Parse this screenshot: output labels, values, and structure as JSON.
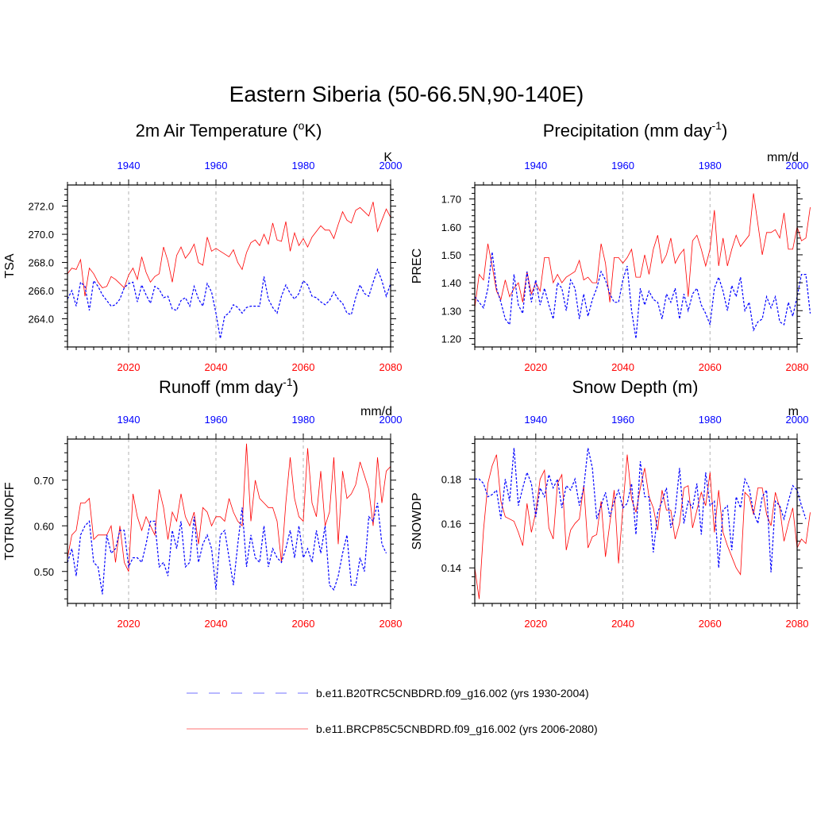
{
  "figure": {
    "title": "Eastern Siberia (50-66.5N,90-140E)"
  },
  "colors": {
    "future": "#ff0000",
    "historical": "#0000ff",
    "grid": "#b3b3b3",
    "axis": "#000000"
  },
  "legend": [
    {
      "name": "b.e11.B20TRC5CNBDRD.f09_g16.002 (yrs 1930-2004)",
      "color": "#0000ff",
      "style": "dashed"
    },
    {
      "name": "b.e11.BRCP85C5CNBDRD.f09_g16.002 (yrs 2006-2080)",
      "color": "#ff0000",
      "style": "solid"
    }
  ],
  "chart_data": [
    {
      "type": "line",
      "title": "2m Air Temperature (",
      "title_sup": "o",
      "title_after": "K)",
      "ylabel": "TSA",
      "units": "K",
      "xlim": [
        2006,
        2080
      ],
      "xticks": [
        2020,
        2040,
        2060,
        2080
      ],
      "xticklabels": [
        "2020",
        "2040",
        "2060",
        "2080"
      ],
      "top_xticks": [
        1940,
        1960,
        1980,
        2000
      ],
      "top_xticklabels": [
        "1940",
        "1960",
        "1980",
        "2000"
      ],
      "ylim": [
        262.0,
        273.5
      ],
      "yticks": [
        264,
        266,
        268,
        270,
        272
      ],
      "yticklabels": [
        "264.0",
        "266.0",
        "268.0",
        "270.0",
        "272.0"
      ],
      "series": [
        {
          "name": "b.e11.BRCP85C5CNBDRD.f09_g16.002",
          "color": "#ff0000",
          "style": "solid",
          "x_start": 2006,
          "values": [
            267.2,
            267.6,
            267.5,
            268.2,
            265.6,
            267.6,
            267.2,
            266.6,
            266.2,
            266.3,
            267.0,
            266.8,
            266.5,
            266.2,
            267.1,
            267.6,
            266.8,
            268.4,
            267.3,
            266.6,
            267.0,
            267.2,
            269.1,
            268.1,
            266.6,
            268.5,
            269.1,
            268.3,
            268.7,
            269.3,
            268.0,
            267.8,
            269.8,
            268.8,
            269.0,
            268.8,
            268.6,
            268.4,
            268.9,
            268.0,
            267.5,
            268.7,
            269.4,
            269.6,
            269.2,
            270.0,
            269.3,
            270.8,
            269.6,
            269.5,
            270.9,
            268.8,
            270.1,
            269.2,
            269.7,
            269.1,
            269.8,
            270.2,
            270.6,
            270.3,
            270.3,
            269.7,
            270.7,
            271.6,
            271.0,
            270.8,
            271.7,
            271.9,
            271.6,
            271.3,
            272.3,
            270.2,
            271.0,
            271.8,
            271.2
          ]
        },
        {
          "name": "b.e11.B20TRC5CNBDRD.f09_g16.002",
          "color": "#0000ff",
          "style": "dashed",
          "x_start": 2006,
          "values": [
            265.4,
            266.0,
            264.9,
            266.6,
            266.3,
            264.6,
            266.7,
            266.3,
            265.7,
            265.3,
            264.9,
            265.0,
            265.4,
            266.2,
            266.5,
            266.6,
            265.2,
            266.4,
            265.7,
            265.1,
            266.3,
            266.1,
            265.5,
            265.6,
            264.7,
            264.6,
            265.3,
            265.5,
            264.9,
            266.3,
            265.4,
            264.9,
            266.5,
            265.9,
            264.4,
            262.6,
            264.2,
            264.4,
            265.0,
            264.8,
            264.4,
            264.8,
            264.9,
            264.9,
            264.9,
            267.0,
            265.4,
            264.8,
            264.4,
            265.6,
            266.4,
            265.8,
            265.4,
            265.8,
            266.7,
            266.4,
            265.6,
            265.5,
            265.2,
            265.0,
            265.3,
            265.9,
            265.4,
            265.1,
            264.4,
            264.3,
            265.5,
            266.4,
            265.8,
            265.6,
            266.6,
            267.5,
            266.7,
            265.6,
            266.5
          ]
        }
      ]
    },
    {
      "type": "line",
      "title": "Precipitation (mm day",
      "title_sup": "-1",
      "title_after": ")",
      "ylabel": "PREC",
      "units": "mm/d",
      "xlim": [
        2006,
        2080
      ],
      "xticks": [
        2020,
        2040,
        2060,
        2080
      ],
      "xticklabels": [
        "2020",
        "2040",
        "2060",
        "2080"
      ],
      "top_xticks": [
        1940,
        1960,
        1980,
        2000
      ],
      "top_xticklabels": [
        "1940",
        "1960",
        "1980",
        "2000"
      ],
      "ylim": [
        1.17,
        1.75
      ],
      "yticks": [
        1.2,
        1.3,
        1.4,
        1.5,
        1.6,
        1.7
      ],
      "yticklabels": [
        "1.20",
        "1.30",
        "1.40",
        "1.50",
        "1.60",
        "1.70"
      ],
      "series": [
        {
          "name": "b.e11.BRCP85C5CNBDRD.f09_g16.002",
          "color": "#ff0000",
          "style": "solid",
          "x_start": 2006,
          "values": [
            1.31,
            1.43,
            1.41,
            1.54,
            1.46,
            1.37,
            1.34,
            1.41,
            1.35,
            1.38,
            1.4,
            1.33,
            1.44,
            1.36,
            1.4,
            1.37,
            1.49,
            1.49,
            1.4,
            1.43,
            1.4,
            1.42,
            1.43,
            1.44,
            1.48,
            1.41,
            1.42,
            1.4,
            1.4,
            1.54,
            1.47,
            1.33,
            1.49,
            1.49,
            1.47,
            1.49,
            1.52,
            1.42,
            1.42,
            1.5,
            1.43,
            1.52,
            1.57,
            1.47,
            1.5,
            1.56,
            1.47,
            1.5,
            1.52,
            1.35,
            1.55,
            1.57,
            1.52,
            1.46,
            1.52,
            1.66,
            1.46,
            1.56,
            1.46,
            1.52,
            1.57,
            1.53,
            1.55,
            1.57,
            1.72,
            1.61,
            1.5,
            1.58,
            1.58,
            1.59,
            1.56,
            1.65,
            1.52,
            1.52,
            1.6,
            1.55,
            1.56,
            1.67
          ]
        },
        {
          "name": "b.e11.B20TRC5CNBDRD.f09_g16.002",
          "color": "#0000ff",
          "style": "dashed",
          "x_start": 2006,
          "values": [
            1.35,
            1.33,
            1.31,
            1.38,
            1.51,
            1.38,
            1.33,
            1.27,
            1.25,
            1.43,
            1.32,
            1.29,
            1.44,
            1.33,
            1.41,
            1.32,
            1.38,
            1.32,
            1.27,
            1.4,
            1.38,
            1.3,
            1.41,
            1.38,
            1.27,
            1.36,
            1.28,
            1.34,
            1.38,
            1.44,
            1.41,
            1.36,
            1.33,
            1.33,
            1.41,
            1.46,
            1.3,
            1.2,
            1.38,
            1.32,
            1.37,
            1.34,
            1.33,
            1.27,
            1.36,
            1.33,
            1.38,
            1.27,
            1.36,
            1.3,
            1.36,
            1.38,
            1.32,
            1.29,
            1.25,
            1.38,
            1.42,
            1.37,
            1.3,
            1.39,
            1.35,
            1.42,
            1.3,
            1.33,
            1.23,
            1.26,
            1.27,
            1.35,
            1.31,
            1.35,
            1.26,
            1.25,
            1.33,
            1.28,
            1.35,
            1.43,
            1.43,
            1.29
          ]
        }
      ]
    },
    {
      "type": "line",
      "title": "Runoff (mm day",
      "title_sup": "-1",
      "title_after": ")",
      "ylabel": "TOTRUNOFF",
      "units": "mm/d",
      "xlim": [
        2006,
        2080
      ],
      "xticks": [
        2020,
        2040,
        2060,
        2080
      ],
      "xticklabels": [
        "2020",
        "2040",
        "2060",
        "2080"
      ],
      "top_xticks": [
        1940,
        1960,
        1980,
        2000
      ],
      "top_xticklabels": [
        "1940",
        "1960",
        "1980",
        "2000"
      ],
      "ylim": [
        0.43,
        0.79
      ],
      "yticks": [
        0.5,
        0.6,
        0.7
      ],
      "yticklabels": [
        "0.50",
        "0.60",
        "0.70"
      ],
      "series": [
        {
          "name": "b.e11.BRCP85C5CNBDRD.f09_g16.002",
          "color": "#ff0000",
          "style": "solid",
          "x_start": 2006,
          "values": [
            0.53,
            0.58,
            0.59,
            0.65,
            0.65,
            0.66,
            0.57,
            0.58,
            0.58,
            0.58,
            0.6,
            0.52,
            0.6,
            0.52,
            0.5,
            0.67,
            0.62,
            0.59,
            0.62,
            0.6,
            0.58,
            0.68,
            0.64,
            0.57,
            0.63,
            0.61,
            0.67,
            0.62,
            0.6,
            0.63,
            0.56,
            0.64,
            0.63,
            0.6,
            0.62,
            0.62,
            0.61,
            0.66,
            0.63,
            0.61,
            0.6,
            0.78,
            0.61,
            0.7,
            0.66,
            0.65,
            0.64,
            0.64,
            0.61,
            0.52,
            0.65,
            0.75,
            0.66,
            0.62,
            0.61,
            0.77,
            0.65,
            0.62,
            0.72,
            0.6,
            0.63,
            0.75,
            0.56,
            0.72,
            0.66,
            0.67,
            0.69,
            0.74,
            0.71,
            0.68,
            0.6,
            0.75,
            0.65,
            0.72,
            0.73
          ]
        },
        {
          "name": "b.e11.B20TRC5CNBDRD.f09_g16.002",
          "color": "#0000ff",
          "style": "dashed",
          "x_start": 2006,
          "values": [
            0.52,
            0.55,
            0.49,
            0.58,
            0.6,
            0.61,
            0.52,
            0.51,
            0.45,
            0.58,
            0.54,
            0.55,
            0.59,
            0.59,
            0.51,
            0.53,
            0.53,
            0.52,
            0.56,
            0.61,
            0.61,
            0.51,
            0.52,
            0.49,
            0.59,
            0.55,
            0.61,
            0.51,
            0.52,
            0.62,
            0.52,
            0.56,
            0.58,
            0.55,
            0.46,
            0.58,
            0.59,
            0.53,
            0.47,
            0.56,
            0.64,
            0.51,
            0.58,
            0.53,
            0.52,
            0.6,
            0.51,
            0.55,
            0.53,
            0.52,
            0.55,
            0.59,
            0.53,
            0.6,
            0.53,
            0.55,
            0.52,
            0.59,
            0.54,
            0.6,
            0.47,
            0.46,
            0.49,
            0.54,
            0.58,
            0.47,
            0.47,
            0.53,
            0.5,
            0.62,
            0.61,
            0.65,
            0.56,
            0.54
          ]
        }
      ]
    },
    {
      "type": "line",
      "title": "Snow Depth (m)",
      "title_sup": "",
      "title_after": "",
      "ylabel": "SNOWDP",
      "units": "m",
      "xlim": [
        2006,
        2080
      ],
      "xticks": [
        2020,
        2040,
        2060,
        2080
      ],
      "xticklabels": [
        "2020",
        "2040",
        "2060",
        "2080"
      ],
      "top_xticks": [
        1940,
        1960,
        1980,
        2000
      ],
      "top_xticklabels": [
        "1940",
        "1960",
        "1980",
        "2000"
      ],
      "ylim": [
        0.124,
        0.198
      ],
      "yticks": [
        0.14,
        0.16,
        0.18
      ],
      "yticklabels": [
        "0.14",
        "0.16",
        "0.18"
      ],
      "series": [
        {
          "name": "b.e11.BRCP85C5CNBDRD.f09_g16.002",
          "color": "#ff0000",
          "style": "solid",
          "x_start": 2006,
          "values": [
            0.14,
            0.126,
            0.157,
            0.178,
            0.186,
            0.191,
            0.17,
            0.163,
            0.162,
            0.161,
            0.156,
            0.15,
            0.169,
            0.156,
            0.165,
            0.18,
            0.184,
            0.158,
            0.153,
            0.178,
            0.182,
            0.148,
            0.157,
            0.16,
            0.162,
            0.177,
            0.149,
            0.154,
            0.155,
            0.17,
            0.145,
            0.16,
            0.175,
            0.142,
            0.167,
            0.191,
            0.171,
            0.165,
            0.176,
            0.185,
            0.172,
            0.167,
            0.157,
            0.175,
            0.166,
            0.166,
            0.153,
            0.16,
            0.176,
            0.177,
            0.158,
            0.166,
            0.174,
            0.168,
            0.183,
            0.156,
            0.175,
            0.156,
            0.15,
            0.145,
            0.14,
            0.137,
            0.174,
            0.172,
            0.164,
            0.176,
            0.176,
            0.164,
            0.159,
            0.174,
            0.167,
            0.152,
            0.16,
            0.167,
            0.149,
            0.153,
            0.151,
            0.165
          ]
        },
        {
          "name": "b.e11.B20TRC5CNBDRD.f09_g16.002",
          "color": "#0000ff",
          "style": "dashed",
          "x_start": 2006,
          "values": [
            0.18,
            0.18,
            0.178,
            0.172,
            0.173,
            0.175,
            0.162,
            0.18,
            0.17,
            0.194,
            0.168,
            0.176,
            0.183,
            0.178,
            0.163,
            0.176,
            0.172,
            0.182,
            0.176,
            0.18,
            0.167,
            0.177,
            0.175,
            0.18,
            0.168,
            0.176,
            0.194,
            0.185,
            0.162,
            0.168,
            0.174,
            0.163,
            0.17,
            0.175,
            0.167,
            0.169,
            0.178,
            0.155,
            0.188,
            0.172,
            0.172,
            0.147,
            0.165,
            0.17,
            0.176,
            0.158,
            0.165,
            0.185,
            0.16,
            0.17,
            0.167,
            0.178,
            0.155,
            0.183,
            0.168,
            0.17,
            0.14,
            0.166,
            0.168,
            0.148,
            0.172,
            0.167,
            0.18,
            0.176,
            0.165,
            0.16,
            0.172,
            0.175,
            0.138,
            0.17,
            0.168,
            0.162,
            0.17,
            0.177,
            0.175,
            0.168,
            0.162
          ]
        }
      ]
    }
  ]
}
